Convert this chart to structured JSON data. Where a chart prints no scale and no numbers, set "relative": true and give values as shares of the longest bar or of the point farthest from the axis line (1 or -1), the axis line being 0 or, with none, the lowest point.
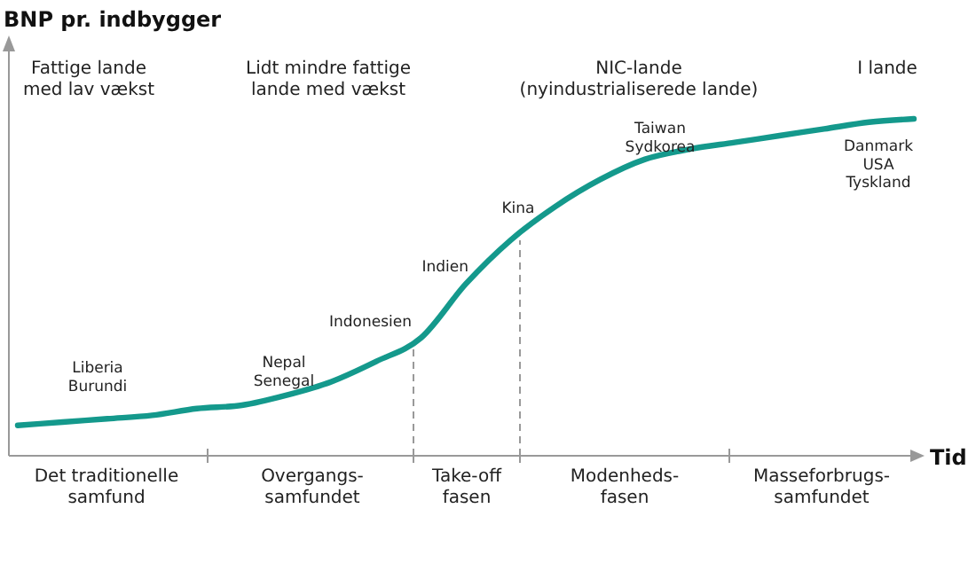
{
  "chart_data": {
    "type": "line",
    "relative": true,
    "ylabel": "BNP pr. indbygger",
    "xlabel": "Tid",
    "categories": [
      null,
      null,
      null,
      null,
      null,
      null,
      null,
      null,
      null,
      null,
      null,
      null,
      null,
      null,
      null,
      null,
      null,
      null,
      null,
      null,
      null
    ],
    "series": [
      {
        "color": "#14998c",
        "values": [
          0.09,
          0.1,
          0.11,
          0.12,
          0.14,
          0.15,
          0.18,
          0.22,
          0.28,
          0.35,
          0.51,
          0.64,
          0.74,
          0.82,
          0.88,
          0.91,
          0.93,
          0.95,
          0.97,
          0.99,
          1
        ]
      }
    ],
    "annotations": [
      "Liberia\nBurundi",
      "Nepal\nSenegal",
      "Indonesien",
      "Indien",
      "Kina",
      "Taiwan\nSydkorea",
      "Danmark\nUSA\nTyskland",
      "Fattige lande\nmed lav vækst",
      "Lidt mindre fattige\nlande med vækst",
      "NIC-lande\n(nyindustrialiserede lande)",
      "I lande",
      "Det traditionelle\nsamfund",
      "Overgangs-\nsamfundet",
      "Take-off\nfasen",
      "Modenheds-\nfasen",
      "Masseforbrugs-\nsamfundet"
    ],
    "grid": false,
    "marker": "none",
    "line_style": "solid"
  }
}
